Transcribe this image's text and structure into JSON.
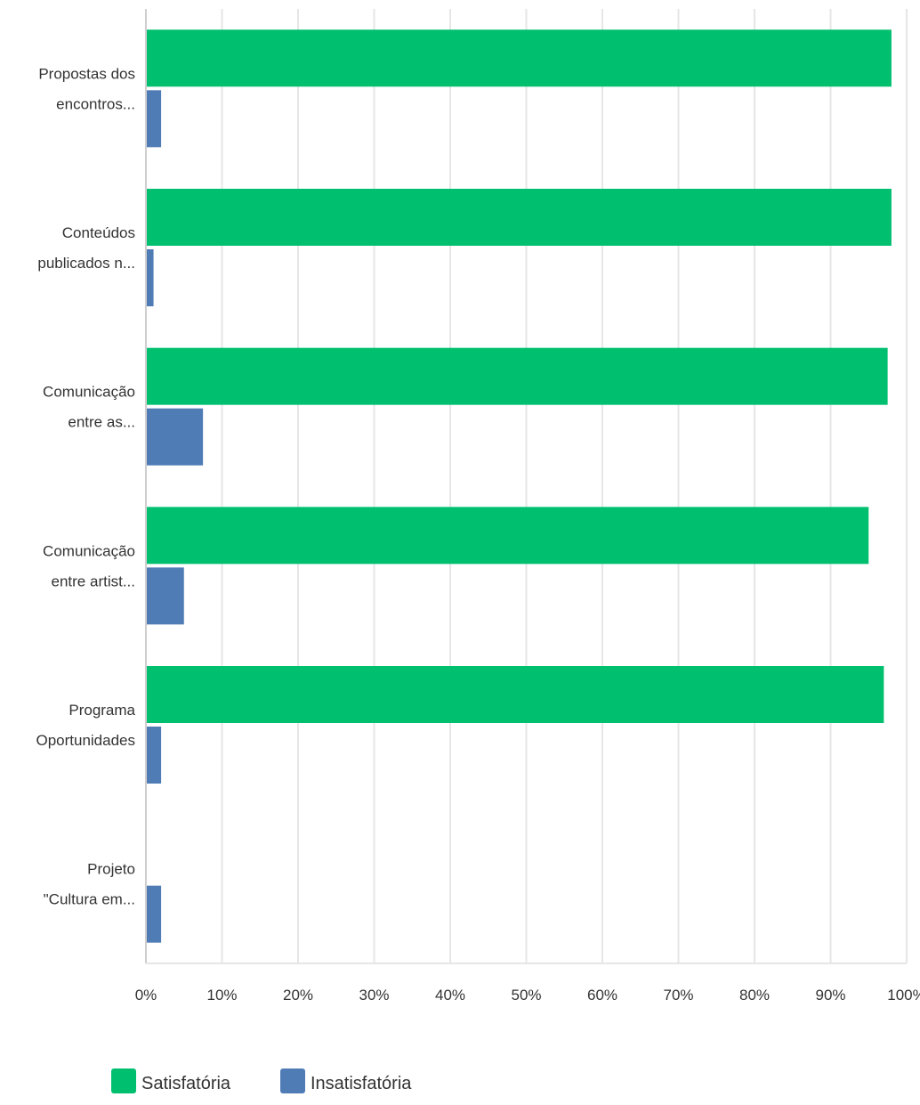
{
  "chart_data": {
    "type": "bar",
    "orientation": "horizontal",
    "categories": [
      [
        "Propostas dos",
        "encontros..."
      ],
      [
        "Conteúdos",
        "publicados n..."
      ],
      [
        "Comunicação",
        "entre as..."
      ],
      [
        "Comunicação",
        "entre artist..."
      ],
      [
        "Programa",
        "Oportunidades"
      ],
      [
        "Projeto",
        "\"Cultura em..."
      ]
    ],
    "series": [
      {
        "name": "Satisfatória",
        "color": "#00bf6f",
        "values": [
          98,
          98,
          97.5,
          95,
          97,
          0
        ]
      },
      {
        "name": "Insatisfatória",
        "color": "#507cb6",
        "values": [
          2,
          1,
          7.5,
          5,
          2,
          2
        ]
      }
    ],
    "xlim": [
      0,
      100
    ],
    "x_ticks": [
      "0%",
      "10%",
      "20%",
      "30%",
      "40%",
      "50%",
      "60%",
      "70%",
      "80%",
      "90%",
      "100%"
    ],
    "grid": true,
    "legend_position": "bottom"
  }
}
